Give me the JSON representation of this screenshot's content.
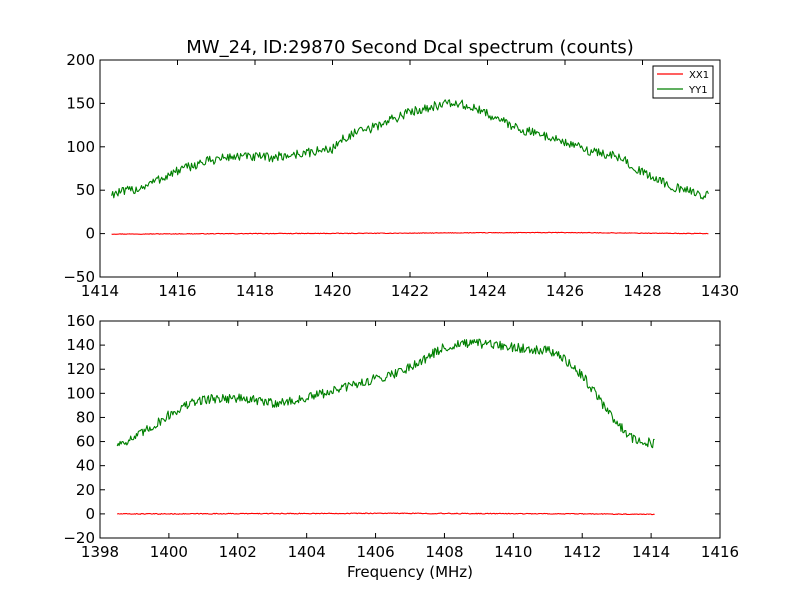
{
  "title": "MW_24, ID:29870 Second Dcal spectrum (counts)",
  "colors": {
    "xx1": "#ff0000",
    "yy1": "#008000",
    "frame": "#000000",
    "background": "#ffffff"
  },
  "chart_data": [
    {
      "type": "line",
      "title": "MW_24, ID:29870 Second Dcal spectrum (counts)",
      "xlabel": "",
      "ylabel": "",
      "xlim": [
        1414,
        1430
      ],
      "ylim": [
        -50,
        200
      ],
      "xticks": [
        "1414",
        "1416",
        "1418",
        "1420",
        "1422",
        "1424",
        "1426",
        "1428",
        "1430"
      ],
      "yticks": [
        "−50",
        "0",
        "50",
        "100",
        "150",
        "200"
      ],
      "grid": false,
      "legend": {
        "position": "top-right",
        "entries": [
          "XX1",
          "YY1"
        ]
      },
      "series": [
        {
          "name": "XX1",
          "color": "#ff0000",
          "x": [
            1414.3,
            1416,
            1418,
            1420,
            1422,
            1423,
            1424,
            1426,
            1428,
            1429.7
          ],
          "y": [
            -0.5,
            -0.3,
            0,
            0.2,
            0.5,
            0.8,
            1.0,
            1.2,
            0.5,
            0
          ]
        },
        {
          "name": "YY1",
          "color": "#008000",
          "x": [
            1414.3,
            1414.6,
            1415,
            1415.5,
            1416,
            1416.5,
            1417,
            1417.5,
            1418,
            1418.5,
            1419,
            1419.5,
            1420,
            1420.3,
            1420.6,
            1421,
            1421.5,
            1422,
            1422.5,
            1423,
            1423.3,
            1423.6,
            1424,
            1424.5,
            1425,
            1425.5,
            1426,
            1426.5,
            1427,
            1427.5,
            1428,
            1428.5,
            1429,
            1429.7
          ],
          "y": [
            46,
            48,
            52,
            62,
            72,
            80,
            86,
            89,
            88,
            88,
            91,
            94,
            98,
            110,
            116,
            121,
            131,
            140,
            146,
            150,
            149,
            145,
            138,
            127,
            118,
            113,
            105,
            97,
            92,
            86,
            70,
            60,
            50,
            44
          ]
        }
      ]
    },
    {
      "type": "line",
      "title": "",
      "xlabel": "Frequency (MHz)",
      "ylabel": "",
      "xlim": [
        1398,
        1416
      ],
      "ylim": [
        -20,
        160
      ],
      "xticks": [
        "1398",
        "1400",
        "1402",
        "1404",
        "1406",
        "1408",
        "1410",
        "1412",
        "1414",
        "1416"
      ],
      "yticks": [
        "−20",
        "0",
        "20",
        "40",
        "60",
        "80",
        "100",
        "120",
        "140",
        "160"
      ],
      "grid": false,
      "legend": null,
      "series": [
        {
          "name": "XX1",
          "color": "#ff0000",
          "x": [
            1398.5,
            1400,
            1402,
            1404,
            1406,
            1408,
            1410,
            1412,
            1414.1
          ],
          "y": [
            0,
            0,
            0.2,
            0.3,
            0.5,
            0.3,
            0.2,
            0,
            -0.3
          ]
        },
        {
          "name": "YY1",
          "color": "#008000",
          "x": [
            1398.5,
            1399,
            1399.5,
            1400,
            1400.5,
            1401,
            1401.5,
            1402,
            1402.5,
            1403,
            1403.5,
            1404,
            1404.5,
            1405,
            1405.5,
            1406,
            1406.5,
            1407,
            1407.5,
            1408,
            1408.5,
            1409,
            1409.5,
            1410,
            1410.5,
            1411,
            1411.3,
            1411.6,
            1412,
            1412.5,
            1413,
            1413.5,
            1414.1
          ],
          "y": [
            58,
            63,
            72,
            82,
            90,
            95,
            96,
            96,
            94,
            92,
            93,
            96,
            100,
            104,
            108,
            112,
            116,
            122,
            130,
            138,
            141,
            141,
            140,
            138,
            137,
            136,
            132,
            125,
            115,
            95,
            75,
            62,
            58
          ]
        }
      ]
    }
  ]
}
